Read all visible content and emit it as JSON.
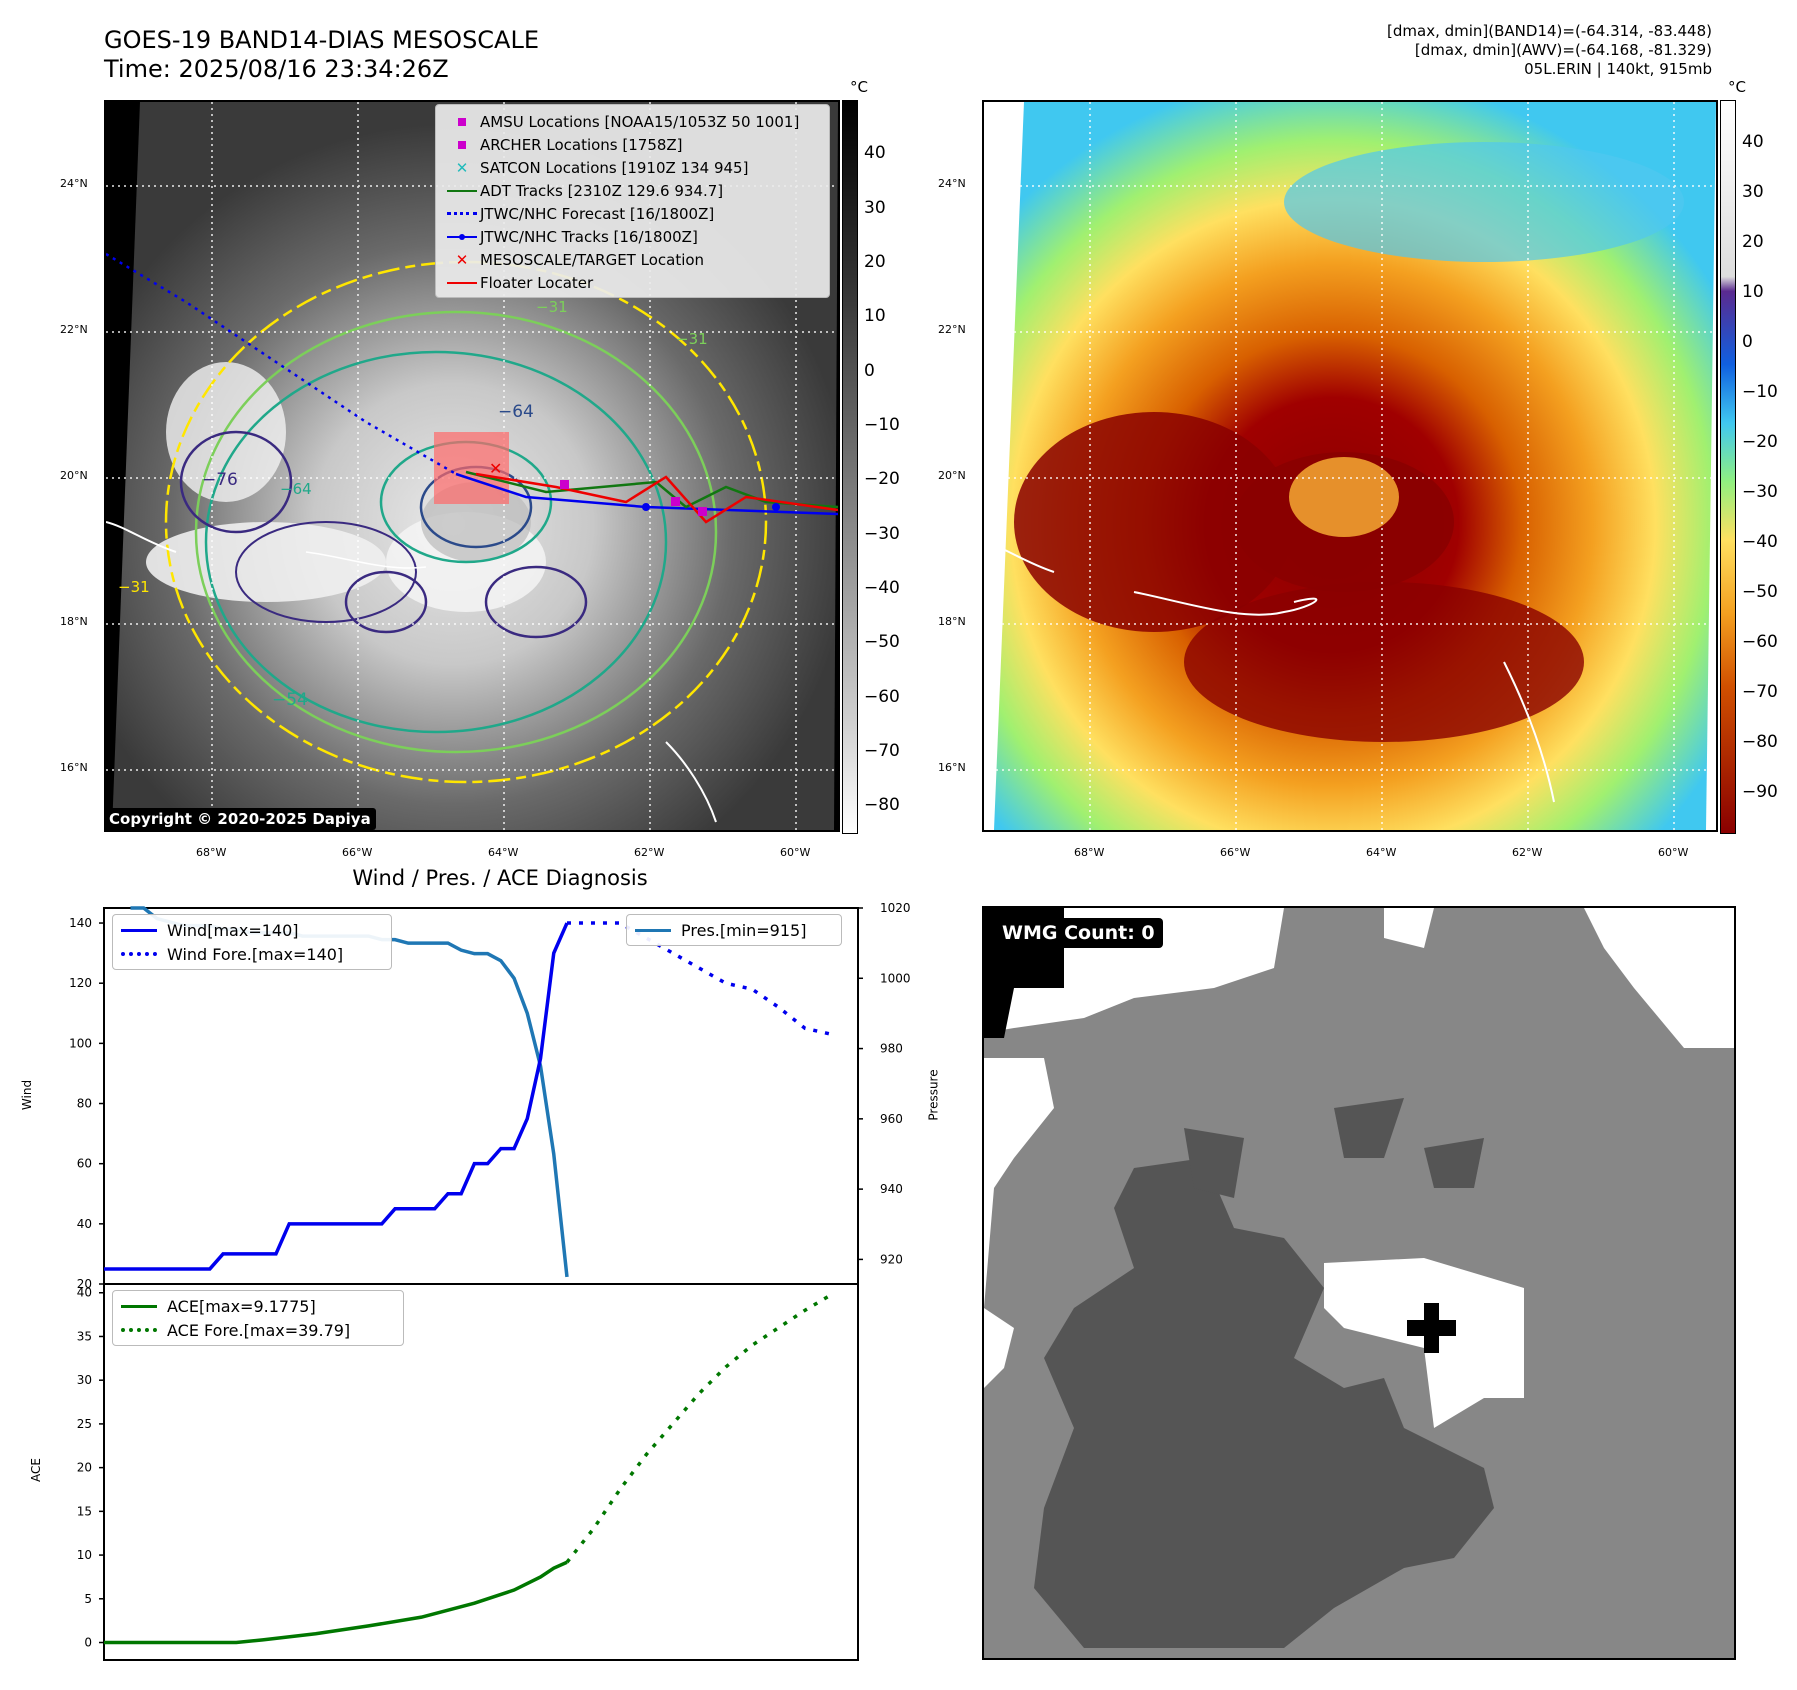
{
  "header": {
    "title_line1": "GOES-19 BAND14-DIAS MESOSCALE",
    "title_line2": "Time: 2025/08/16 23:34:26Z",
    "stats_line1": "[dmax, dmin](BAND14)=(-64.314, -83.448)",
    "stats_line2": "[dmax, dmin](AWV)=(-64.168, -81.329)",
    "stats_line3": "05L.ERIN | 140kt, 915mb"
  },
  "units": {
    "celsius": "°C"
  },
  "ir_panel": {
    "colorbar_ticks": [
      "40",
      "30",
      "20",
      "10",
      "0",
      "−10",
      "−20",
      "−30",
      "−40",
      "−50",
      "−60",
      "−70",
      "−80"
    ],
    "lat_labels": [
      "24°N",
      "22°N",
      "20°N",
      "18°N",
      "16°N"
    ],
    "lon_labels": [
      "68°W",
      "66°W",
      "64°W",
      "62°W",
      "60°W"
    ],
    "contour_labels": [
      "−64",
      "−76",
      "−64",
      "−54",
      "−31",
      "−31",
      "−31"
    ],
    "legend": [
      {
        "label": "AMSU Locations [NOAA15/1053Z 50 1001]",
        "color": "#cc00cc",
        "marker": "square"
      },
      {
        "label": "ARCHER Locations [1758Z]",
        "color": "#cc00cc",
        "marker": "square"
      },
      {
        "label": "SATCON Locations [1910Z 134 945]",
        "color": "#22bbbb",
        "marker": "x"
      },
      {
        "label": "ADT Tracks [2310Z 129.6 934.7]",
        "color": "#117711",
        "marker": "line"
      },
      {
        "label": "JTWC/NHC Forecast [16/1800Z]",
        "color": "#0000ee",
        "marker": "dotted"
      },
      {
        "label": "JTWC/NHC Tracks [16/1800Z]",
        "color": "#0000ee",
        "marker": "line-dot"
      },
      {
        "label": "MESOSCALE/TARGET Location",
        "color": "#ee0000",
        "marker": "x"
      },
      {
        "label": "Floater Locater",
        "color": "#ee0000",
        "marker": "line"
      }
    ],
    "copyright": "Copyright © 2020-2025 Dapiya"
  },
  "awv_panel": {
    "colorbar_ticks": [
      "40",
      "30",
      "20",
      "10",
      "0",
      "−10",
      "−20",
      "−30",
      "−40",
      "−50",
      "−60",
      "−70",
      "−80",
      "−90"
    ],
    "lat_labels": [
      "24°N",
      "22°N",
      "20°N",
      "18°N",
      "16°N"
    ],
    "lon_labels": [
      "68°W",
      "66°W",
      "64°W",
      "62°W",
      "60°W"
    ]
  },
  "diagnosis": {
    "title": "Wind / Pres. / ACE Diagnosis",
    "wind_ylabel": "Wind",
    "pres_ylabel": "Pressure",
    "ace_ylabel": "ACE",
    "legend_wind": "Wind[max=140]",
    "legend_wind_fore": "Wind Fore.[max=140]",
    "legend_pres": "Pres.[min=915]",
    "legend_ace": "ACE[max=9.1775]",
    "legend_ace_fore": "ACE Fore.[max=39.79]"
  },
  "chart_data": [
    {
      "type": "line",
      "title": "Wind / Pres. / ACE Diagnosis",
      "ylabel": "Wind",
      "ylim": [
        20,
        145
      ],
      "y_ticks": [
        20,
        40,
        60,
        80,
        100,
        120,
        140
      ],
      "series": [
        {
          "name": "Wind[max=140]",
          "color": "#0000ee",
          "style": "solid",
          "x": [
            0,
            1,
            2,
            3,
            4,
            5,
            6,
            7,
            8,
            9,
            10,
            11,
            12,
            13,
            14,
            15,
            16,
            17,
            18,
            19,
            20,
            21,
            22,
            23,
            24,
            25,
            26,
            27,
            28,
            29,
            30,
            31,
            32,
            33,
            34,
            35
          ],
          "values": [
            25,
            25,
            25,
            25,
            25,
            25,
            25,
            25,
            25,
            30,
            30,
            30,
            30,
            30,
            40,
            40,
            40,
            40,
            40,
            40,
            40,
            40,
            45,
            45,
            45,
            45,
            50,
            50,
            60,
            60,
            65,
            65,
            75,
            95,
            130,
            140
          ]
        },
        {
          "name": "Wind Fore.[max=140]",
          "color": "#0000ee",
          "style": "dotted",
          "x": [
            35,
            37,
            39,
            41,
            43,
            45,
            47,
            49,
            51,
            53,
            55
          ],
          "values": [
            140,
            140,
            140,
            135,
            130,
            125,
            120,
            118,
            112,
            105,
            103
          ]
        }
      ],
      "secondary": {
        "ylabel": "Pressure",
        "ylim": [
          913,
          1020
        ],
        "y_ticks": [
          920,
          940,
          960,
          980,
          1000,
          1020
        ],
        "series": [
          {
            "name": "Pres.[min=915]",
            "color": "#1f77b4",
            "style": "solid",
            "x": [
              2,
              3,
              4,
              5,
              6,
              7,
              8,
              9,
              10,
              11,
              12,
              13,
              14,
              15,
              16,
              17,
              18,
              19,
              20,
              21,
              22,
              23,
              24,
              25,
              26,
              27,
              28,
              29,
              30,
              31,
              32,
              33,
              34,
              35
            ],
            "values": [
              1020,
              1020,
              1017,
              1016,
              1015,
              1015,
              1015,
              1014,
              1014,
              1013,
              1013,
              1013,
              1013,
              1012,
              1012,
              1012,
              1012,
              1012,
              1012,
              1011,
              1011,
              1010,
              1010,
              1010,
              1010,
              1008,
              1007,
              1007,
              1005,
              1000,
              990,
              975,
              950,
              915
            ]
          }
        ]
      }
    },
    {
      "type": "line",
      "ylabel": "ACE",
      "ylim": [
        -2,
        41
      ],
      "y_ticks": [
        0,
        5,
        10,
        15,
        20,
        25,
        30,
        35,
        40
      ],
      "series": [
        {
          "name": "ACE[max=9.1775]",
          "color": "#007700",
          "style": "solid",
          "x": [
            0,
            10,
            12,
            16,
            20,
            24,
            28,
            31,
            33,
            34,
            35
          ],
          "values": [
            0,
            0,
            0.3,
            1.0,
            1.9,
            2.9,
            4.5,
            6.0,
            7.5,
            8.5,
            9.18
          ]
        },
        {
          "name": "ACE Fore.[max=39.79]",
          "color": "#007700",
          "style": "dotted",
          "x": [
            35,
            37,
            39,
            41,
            43,
            45,
            47,
            49,
            51,
            53,
            55
          ],
          "values": [
            9.18,
            13,
            17.5,
            21.5,
            25,
            28.5,
            31.5,
            34,
            36,
            38,
            39.8
          ]
        }
      ]
    }
  ],
  "wmg_panel": {
    "label": "WMG Count: 0"
  }
}
